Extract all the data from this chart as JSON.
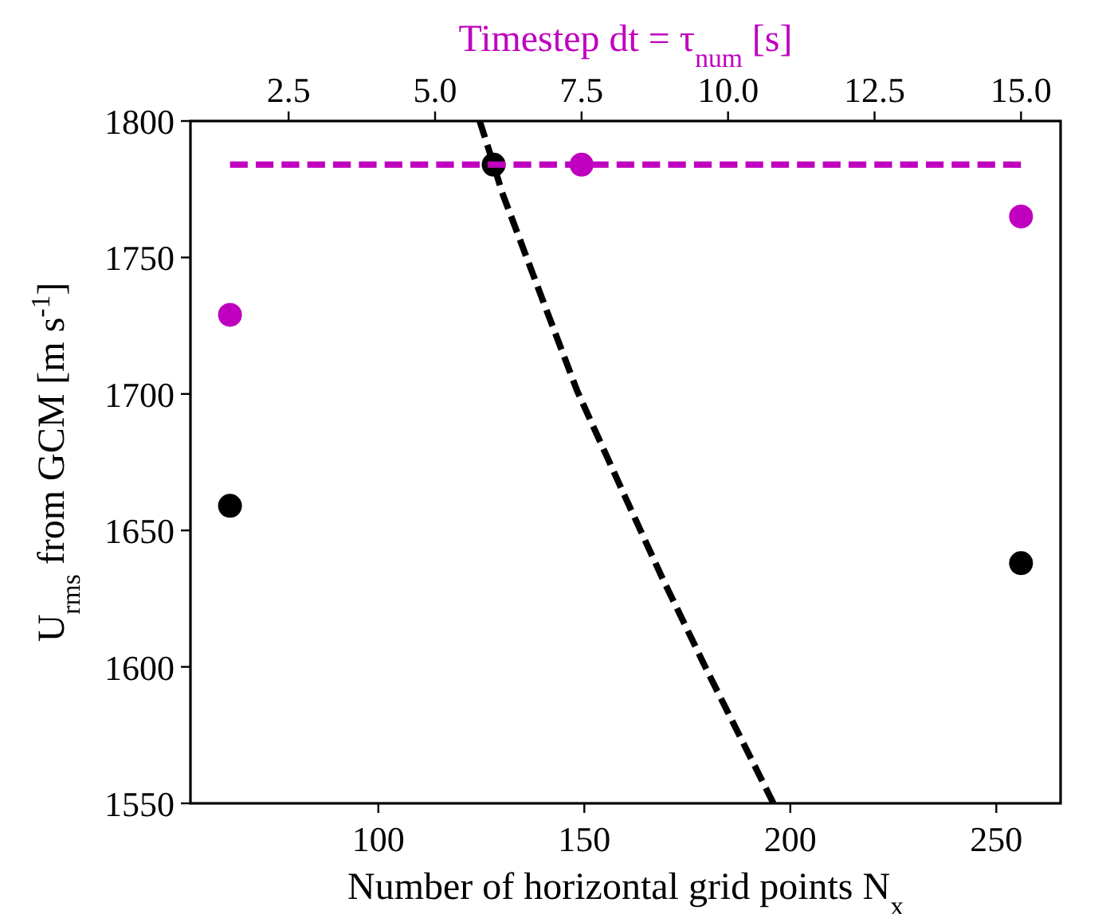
{
  "chart_data": {
    "type": "scatter",
    "xlabel": "Number of horizontal grid points N$_{x}$",
    "ylabel": "U$_{rms}$ from GCM [m s$^{-1}$]",
    "x2label": "Timestep dt = τ$_{num}$ [s]",
    "xlim": [
      54.4,
      265.6
    ],
    "xticks": [
      100,
      150,
      200,
      250
    ],
    "x2lim": [
      0.825,
      15.675
    ],
    "x2ticks": [
      {
        "value": 2.5,
        "label": "2.5"
      },
      {
        "value": 5,
        "label": "5.0"
      },
      {
        "value": 7.5,
        "label": "7.5"
      },
      {
        "value": 10,
        "label": "10.0"
      },
      {
        "value": 12.5,
        "label": "12.5"
      },
      {
        "value": 15,
        "label": "15.0"
      }
    ],
    "ylim": [
      1550,
      1800
    ],
    "yticks": [
      1550,
      1600,
      1650,
      1700,
      1750,
      1800
    ],
    "grid": false,
    "series": [
      {
        "color": "#000000",
        "marker": "circle",
        "x": [
          64,
          128,
          256
        ],
        "values": [
          1659,
          1784,
          1638
        ]
      },
      {
        "type": "line",
        "color": "#000000",
        "line_style": "dashed",
        "marker": "none",
        "x": [
          124.6,
          128,
          130,
          140,
          148.3,
          160,
          168.8,
          180,
          195.9
        ],
        "values": [
          1800,
          1784,
          1774,
          1734,
          1701,
          1662,
          1633,
          1598,
          1550
        ]
      },
      {
        "axis": "x2",
        "color": "#bf00bf",
        "marker": "circle",
        "x": [
          1.5,
          7.5,
          15
        ],
        "values": [
          1729,
          1784,
          1765
        ]
      },
      {
        "type": "line",
        "axis": "x2",
        "color": "#bf00bf",
        "line_style": "dashed",
        "marker": "none",
        "x": [
          1.5,
          15
        ],
        "values": [
          1784,
          1784
        ]
      }
    ]
  }
}
